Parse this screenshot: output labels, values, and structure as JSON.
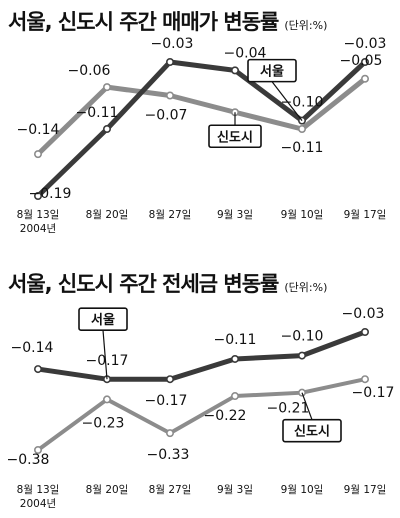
{
  "colors": {
    "seoul": "#3a3a3a",
    "sindosi": "#8c8c8c",
    "background": "#ffffff"
  },
  "chart_data": [
    {
      "type": "line",
      "title": "서울, 신도시 주간 매매가 변동률",
      "unit_note": "(단위:%)",
      "categories": [
        "8월 13일",
        "8월 20일",
        "8월 27일",
        "9월 3일",
        "9월 10일",
        "9월 17일"
      ],
      "year_label": "2004년",
      "series": [
        {
          "name": "서울",
          "values": [
            -0.19,
            -0.11,
            -0.03,
            -0.04,
            -0.1,
            -0.03
          ]
        },
        {
          "name": "신도시",
          "values": [
            -0.14,
            -0.06,
            -0.07,
            -0.09,
            -0.11,
            -0.05
          ]
        }
      ],
      "data_labels": {
        "서울": [
          "-0.19",
          "-0.11",
          "-0.03",
          "-0.04",
          "-0.10",
          "-0.03"
        ],
        "신도시": [
          "-0.14",
          "-0.06",
          "-0.07",
          "-0.09",
          "-0.11",
          "-0.05"
        ]
      },
      "ylim": [
        -0.2,
        -0.02
      ],
      "grid": false
    },
    {
      "type": "line",
      "title": "서울, 신도시 주간 전세금 변동률",
      "unit_note": "(단위:%)",
      "categories": [
        "8월 13일",
        "8월 20일",
        "8월 27일",
        "9월 3일",
        "9월 10일",
        "9월 17일"
      ],
      "year_label": "2004년",
      "series": [
        {
          "name": "서울",
          "values": [
            -0.14,
            -0.17,
            -0.17,
            -0.11,
            -0.1,
            -0.03
          ]
        },
        {
          "name": "신도시",
          "values": [
            -0.38,
            -0.23,
            -0.33,
            -0.22,
            -0.21,
            -0.17
          ]
        }
      ],
      "data_labels": {
        "서울": [
          "-0.14",
          "-0.17",
          "-0.17",
          "-0.11",
          "-0.10",
          "-0.03"
        ],
        "신도시": [
          "-0.38",
          "-0.23",
          "-0.33",
          "-0.22",
          "-0.21",
          "-0.17"
        ]
      },
      "ylim": [
        -0.4,
        -0.02
      ],
      "grid": false
    }
  ]
}
